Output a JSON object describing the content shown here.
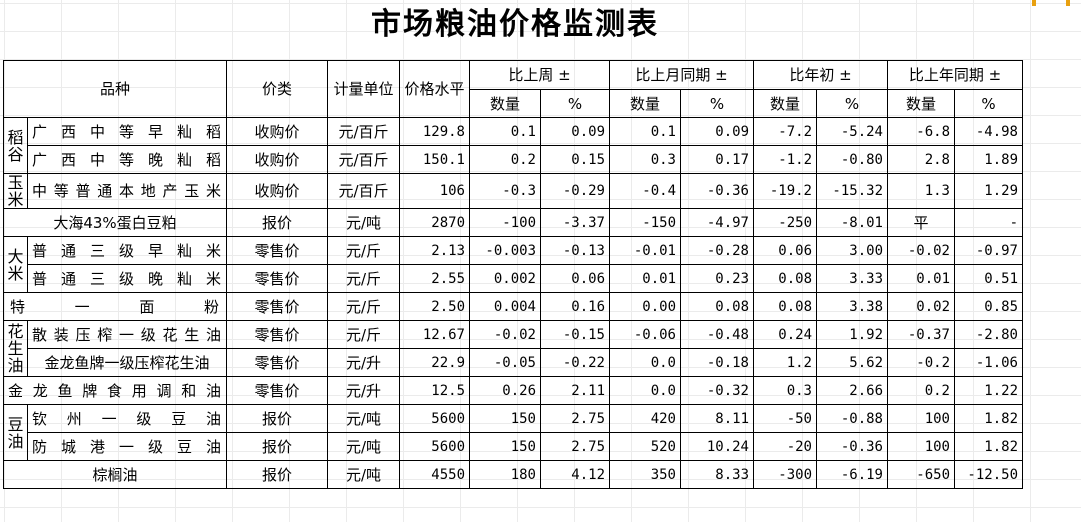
{
  "title": "市场粮油价格监测表",
  "headers": {
    "variety": "品种",
    "price_type": "价类",
    "unit": "计量单位",
    "price_level": "价格水平",
    "groups": [
      "比上周 ±",
      "比上月同期 ±",
      "比年初 ±",
      "比上年同期 ±"
    ],
    "sub_qty": "数量",
    "sub_pct": "%"
  },
  "categories": {
    "rice_grain": "稻谷",
    "corn": "玉米",
    "rice": "大米",
    "peanut_oil": "花生油",
    "soy_oil": "豆油"
  },
  "rows": [
    {
      "name": "广西中等早籼稻",
      "type": "收购价",
      "unit": "元/百斤",
      "price": "129.8",
      "w_q": "0.1",
      "w_p": "0.09",
      "m_q": "0.1",
      "m_p": "0.09",
      "y0_q": "-7.2",
      "y0_p": "-5.24",
      "ly_q": "-6.8",
      "ly_p": "-4.98"
    },
    {
      "name": "广西中等晚籼稻",
      "type": "收购价",
      "unit": "元/百斤",
      "price": "150.1",
      "w_q": "0.2",
      "w_p": "0.15",
      "m_q": "0.3",
      "m_p": "0.17",
      "y0_q": "-1.2",
      "y0_p": "-0.80",
      "ly_q": "2.8",
      "ly_p": "1.89"
    },
    {
      "name": "中等普通本地产玉米",
      "type": "收购价",
      "unit": "元/百斤",
      "price": "106",
      "w_q": "-0.3",
      "w_p": "-0.29",
      "m_q": "-0.4",
      "m_p": "-0.36",
      "y0_q": "-19.2",
      "y0_p": "-15.32",
      "ly_q": "1.3",
      "ly_p": "1.29"
    },
    {
      "name": "大海43%蛋白豆粕",
      "type": "报价",
      "unit": "元/吨",
      "price": "2870",
      "w_q": "-100",
      "w_p": "-3.37",
      "m_q": "-150",
      "m_p": "-4.97",
      "y0_q": "-250",
      "y0_p": "-8.01",
      "ly_q": "平",
      "ly_p": "-"
    },
    {
      "name": "普通三级早籼米",
      "type": "零售价",
      "unit": "元/斤",
      "price": "2.13",
      "w_q": "-0.003",
      "w_p": "-0.13",
      "m_q": "-0.01",
      "m_p": "-0.28",
      "y0_q": "0.06",
      "y0_p": "3.00",
      "ly_q": "-0.02",
      "ly_p": "-0.97"
    },
    {
      "name": "普通三级晚籼米",
      "type": "零售价",
      "unit": "元/斤",
      "price": "2.55",
      "w_q": "0.002",
      "w_p": "0.06",
      "m_q": "0.01",
      "m_p": "0.23",
      "y0_q": "0.08",
      "y0_p": "3.33",
      "ly_q": "0.01",
      "ly_p": "0.51"
    },
    {
      "name": "特一面粉",
      "type": "零售价",
      "unit": "元/斤",
      "price": "2.50",
      "w_q": "0.004",
      "w_p": "0.16",
      "m_q": "0.00",
      "m_p": "0.08",
      "y0_q": "0.08",
      "y0_p": "3.38",
      "ly_q": "0.02",
      "ly_p": "0.85"
    },
    {
      "name": "散装压榨一级花生油",
      "type": "零售价",
      "unit": "元/斤",
      "price": "12.67",
      "w_q": "-0.02",
      "w_p": "-0.15",
      "m_q": "-0.06",
      "m_p": "-0.48",
      "y0_q": "0.24",
      "y0_p": "1.92",
      "ly_q": "-0.37",
      "ly_p": "-2.80"
    },
    {
      "name": "金龙鱼牌一级压榨花生油",
      "type": "零售价",
      "unit": "元/升",
      "price": "22.9",
      "w_q": "-0.05",
      "w_p": "-0.22",
      "m_q": "0.0",
      "m_p": "-0.18",
      "y0_q": "1.2",
      "y0_p": "5.62",
      "ly_q": "-0.2",
      "ly_p": "-1.06"
    },
    {
      "name": "金龙鱼牌食用调和油",
      "type": "零售价",
      "unit": "元/升",
      "price": "12.5",
      "w_q": "0.26",
      "w_p": "2.11",
      "m_q": "0.0",
      "m_p": "-0.32",
      "y0_q": "0.3",
      "y0_p": "2.66",
      "ly_q": "0.2",
      "ly_p": "1.22"
    },
    {
      "name": "钦州一级豆油",
      "type": "报价",
      "unit": "元/吨",
      "price": "5600",
      "w_q": "150",
      "w_p": "2.75",
      "m_q": "420",
      "m_p": "8.11",
      "y0_q": "-50",
      "y0_p": "-0.88",
      "ly_q": "100",
      "ly_p": "1.82"
    },
    {
      "name": "防城港一级豆油",
      "type": "报价",
      "unit": "元/吨",
      "price": "5600",
      "w_q": "150",
      "w_p": "2.75",
      "m_q": "520",
      "m_p": "10.24",
      "y0_q": "-20",
      "y0_p": "-0.36",
      "ly_q": "100",
      "ly_p": "1.82"
    },
    {
      "name": "棕榈油",
      "type": "报价",
      "unit": "元/吨",
      "price": "4550",
      "w_q": "180",
      "w_p": "4.12",
      "m_q": "350",
      "m_p": "8.33",
      "y0_q": "-300",
      "y0_p": "-6.19",
      "ly_q": "-650",
      "ly_p": "-12.50"
    }
  ]
}
